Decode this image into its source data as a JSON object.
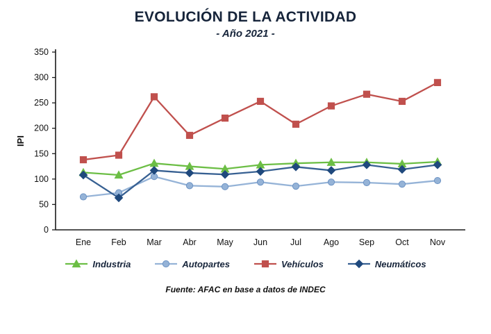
{
  "title": "EVOLUCIÓN DE LA ACTIVIDAD",
  "subtitle": "- Año 2021 -",
  "footer": "Fuente: AFAC en base a datos de INDEC",
  "chart_data": {
    "type": "line",
    "title": "EVOLUCIÓN DE LA ACTIVIDAD - Año 2021 -",
    "xlabel": "",
    "ylabel": "IPI",
    "ylim": [
      0,
      350
    ],
    "ytick_step": 50,
    "grid": false,
    "legend_position": "bottom",
    "categories": [
      "Ene",
      "Feb",
      "Mar",
      "Abr",
      "May",
      "Jun",
      "Jul",
      "Ago",
      "Sep",
      "Oct",
      "Nov"
    ],
    "series": [
      {
        "name": "Industria",
        "marker": "triangle",
        "color": "#6cbe45",
        "line_color": "#6cbe45",
        "values": [
          113,
          108,
          131,
          125,
          120,
          128,
          131,
          133,
          133,
          130,
          134
        ]
      },
      {
        "name": "Autopartes",
        "marker": "circle",
        "color": "#95b3d7",
        "line_color": "#95b3d7",
        "values": [
          65,
          73,
          105,
          87,
          85,
          94,
          86,
          94,
          93,
          90,
          97
        ]
      },
      {
        "name": "Vehículos",
        "marker": "square",
        "color": "#c0504d",
        "line_color": "#c0504d",
        "values": [
          138,
          147,
          262,
          186,
          220,
          253,
          208,
          244,
          267,
          253,
          290
        ]
      },
      {
        "name": "Neumáticos",
        "marker": "diamond",
        "color": "#1f497d",
        "line_color": "#376092",
        "values": [
          108,
          63,
          117,
          112,
          109,
          115,
          124,
          117,
          128,
          119,
          128
        ]
      }
    ]
  }
}
